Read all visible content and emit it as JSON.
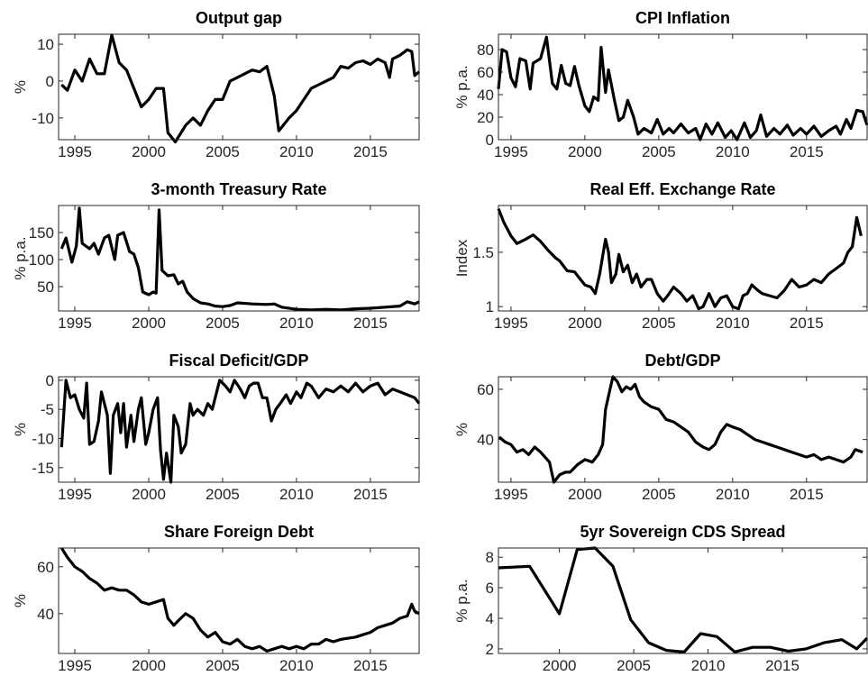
{
  "chart_data": [
    {
      "type": "line",
      "title": "Output gap",
      "y_label": "%",
      "color": "#000000",
      "xlim": [
        1993.9,
        2018.3
      ],
      "ylim": [
        -15.9,
        12.7
      ],
      "xticks": [
        1995,
        2000,
        2005,
        2010,
        2015
      ],
      "yticks": [
        -10,
        0,
        10
      ],
      "x": [
        1994.1,
        1994.5,
        1995,
        1995.5,
        1996,
        1996.5,
        1997,
        1997.5,
        1998,
        1998.5,
        1999,
        1999.5,
        2000,
        2000.5,
        2001,
        2001.3,
        2001.8,
        2002.5,
        2003,
        2003.5,
        2004,
        2004.5,
        2005,
        2005.5,
        2006,
        2006.5,
        2007,
        2007.5,
        2008,
        2008.5,
        2008.8,
        2009.5,
        2010,
        2010.5,
        2011,
        2011.5,
        2012,
        2012.5,
        2013,
        2013.5,
        2014,
        2014.5,
        2015,
        2015.5,
        2016,
        2016.3,
        2016.5,
        2017,
        2017.5,
        2017.8,
        2018,
        2018.3
      ],
      "values": [
        -1,
        -2.5,
        3,
        0,
        6,
        2,
        2,
        12.5,
        5,
        3,
        -2,
        -7,
        -5,
        -2,
        -2,
        -14,
        -16.5,
        -12,
        -10,
        -12,
        -8,
        -5,
        -5,
        0,
        1,
        2,
        3,
        2.5,
        4,
        -4,
        -13.5,
        -10,
        -8,
        -5,
        -2,
        -1,
        0,
        1,
        4,
        3.5,
        5,
        5.5,
        4.5,
        6,
        5,
        1,
        6,
        7,
        8.5,
        8,
        1.5,
        2.5
      ]
    },
    {
      "type": "line",
      "title": "CPI Inflation",
      "y_label": "% p.a.",
      "color": "#000000",
      "xlim": [
        1994.15,
        2019.1
      ],
      "ylim": [
        0,
        93.6
      ],
      "xticks": [
        1995,
        2000,
        2005,
        2010,
        2015
      ],
      "yticks": [
        0,
        20,
        40,
        60,
        80
      ],
      "x": [
        1994.15,
        1994.4,
        1994.7,
        1995,
        1995.3,
        1995.6,
        1996,
        1996.3,
        1996.5,
        1997,
        1997.4,
        1997.8,
        1998.1,
        1998.4,
        1998.7,
        1999,
        1999.3,
        1999.6,
        2000,
        2000.3,
        2000.6,
        2000.9,
        2001.1,
        2001.4,
        2001.6,
        2002,
        2002.3,
        2002.6,
        2002.9,
        2003.3,
        2003.6,
        2004,
        2004.5,
        2004.9,
        2005.3,
        2005.7,
        2006,
        2006.5,
        2007,
        2007.5,
        2007.8,
        2008.2,
        2008.6,
        2009,
        2009.5,
        2009.9,
        2010.3,
        2010.8,
        2011.2,
        2011.6,
        2011.9,
        2012.3,
        2012.8,
        2013.2,
        2013.7,
        2014.1,
        2014.6,
        2015,
        2015.5,
        2016,
        2016.5,
        2017,
        2017.3,
        2017.7,
        2018,
        2018.4,
        2018.8,
        2019.1
      ],
      "values": [
        45,
        80,
        78,
        55,
        47,
        72,
        70,
        45,
        68,
        72,
        91,
        50,
        45,
        66,
        50,
        48,
        65,
        48,
        30,
        25,
        38,
        35,
        82,
        42,
        62,
        35,
        17,
        20,
        35,
        20,
        5,
        10,
        6,
        18,
        5,
        10,
        6,
        14,
        6,
        10,
        0,
        14,
        5,
        15,
        2,
        8,
        0,
        15,
        2,
        8,
        22,
        3,
        10,
        5,
        13,
        4,
        10,
        5,
        12,
        3,
        8,
        12,
        5,
        18,
        10,
        26,
        25,
        13
      ]
    },
    {
      "type": "line",
      "title": "3-month Treasury Rate",
      "y_label": "% p.a.",
      "color": "#000000",
      "xlim": [
        1993.9,
        2018.3
      ],
      "ylim": [
        5,
        200
      ],
      "xticks": [
        1995,
        2000,
        2005,
        2010,
        2015
      ],
      "yticks": [
        50,
        100,
        150
      ],
      "x": [
        1994.1,
        1994.4,
        1994.8,
        1995.1,
        1995.3,
        1995.5,
        1996,
        1996.3,
        1996.6,
        1997,
        1997.3,
        1997.7,
        1997.9,
        1998.3,
        1998.7,
        1999,
        1999.3,
        1999.6,
        2000,
        2000.3,
        2000.5,
        2000.7,
        2000.9,
        2001.3,
        2001.7,
        2002,
        2002.3,
        2002.6,
        2003,
        2003.5,
        2004,
        2004.5,
        2005,
        2005.5,
        2006,
        2007,
        2008,
        2008.5,
        2009,
        2010,
        2011,
        2012,
        2013,
        2014,
        2015,
        2016,
        2017,
        2017.5,
        2018,
        2018.3
      ],
      "values": [
        120,
        140,
        95,
        125,
        195,
        130,
        120,
        130,
        110,
        140,
        145,
        100,
        145,
        150,
        115,
        110,
        85,
        40,
        35,
        40,
        38,
        192,
        80,
        70,
        72,
        55,
        60,
        40,
        28,
        20,
        18,
        14,
        13,
        15,
        20,
        18,
        17,
        18,
        12,
        8,
        7,
        8,
        7,
        9,
        10,
        12,
        14,
        22,
        18,
        22
      ]
    },
    {
      "type": "line",
      "title": "Real Eff. Exchange Rate",
      "y_label": "Index",
      "color": "#000000",
      "xlim": [
        1994.15,
        2019.1
      ],
      "ylim": [
        0.96,
        1.93
      ],
      "xticks": [
        1995,
        2000,
        2005,
        2010,
        2015
      ],
      "yticks": [
        1,
        1.5
      ],
      "x": [
        1994.15,
        1994.5,
        1995,
        1995.4,
        1996,
        1996.5,
        1997,
        1997.5,
        1998,
        1998.3,
        1998.8,
        1999.3,
        1999.7,
        2000,
        2000.4,
        2000.7,
        2001,
        2001.4,
        2001.6,
        2001.8,
        2002.1,
        2002.3,
        2002.6,
        2002.9,
        2003.2,
        2003.5,
        2003.8,
        2004.2,
        2004.5,
        2004.9,
        2005.3,
        2005.6,
        2006,
        2006.5,
        2006.9,
        2007.3,
        2007.7,
        2008,
        2008.4,
        2008.8,
        2009.2,
        2009.6,
        2010,
        2010.4,
        2010.7,
        2011,
        2011.3,
        2011.7,
        2012,
        2012.5,
        2013,
        2013.5,
        2014,
        2014.5,
        2015,
        2015.5,
        2016,
        2016.5,
        2017,
        2017.5,
        2017.8,
        2018.1,
        2018.4,
        2018.7
      ],
      "values": [
        1.9,
        1.78,
        1.65,
        1.58,
        1.62,
        1.66,
        1.6,
        1.52,
        1.45,
        1.42,
        1.33,
        1.32,
        1.25,
        1.2,
        1.18,
        1.12,
        1.3,
        1.62,
        1.5,
        1.22,
        1.3,
        1.48,
        1.32,
        1.38,
        1.22,
        1.3,
        1.18,
        1.25,
        1.25,
        1.12,
        1.05,
        1.1,
        1.18,
        1.12,
        1.05,
        1.1,
        0.98,
        1.0,
        1.12,
        1.0,
        1.08,
        1.1,
        1.0,
        0.98,
        1.1,
        1.12,
        1.2,
        1.15,
        1.12,
        1.1,
        1.08,
        1.15,
        1.25,
        1.18,
        1.2,
        1.25,
        1.22,
        1.3,
        1.35,
        1.4,
        1.5,
        1.55,
        1.82,
        1.65
      ]
    },
    {
      "type": "line",
      "title": "Fiscal Deficit/GDP",
      "y_label": "%",
      "color": "#000000",
      "xlim": [
        1993.9,
        2018.3
      ],
      "ylim": [
        -17.5,
        0.6
      ],
      "xticks": [
        1995,
        2000,
        2005,
        2010,
        2015
      ],
      "yticks": [
        -15,
        -10,
        -5,
        0
      ],
      "x": [
        1994.1,
        1994.4,
        1994.7,
        1995,
        1995.3,
        1995.6,
        1995.8,
        1996,
        1996.3,
        1996.6,
        1996.8,
        1997,
        1997.2,
        1997.4,
        1997.6,
        1997.9,
        1998.1,
        1998.3,
        1998.5,
        1998.8,
        1999,
        1999.3,
        1999.5,
        1999.8,
        2000,
        2000.3,
        2000.6,
        2000.8,
        2001,
        2001.2,
        2001.5,
        2001.7,
        2002,
        2002.2,
        2002.5,
        2002.8,
        2003,
        2003.3,
        2003.7,
        2004,
        2004.3,
        2004.6,
        2004.8,
        2005.2,
        2005.5,
        2005.8,
        2006.2,
        2006.5,
        2006.8,
        2007.1,
        2007.4,
        2007.7,
        2008,
        2008.3,
        2008.6,
        2008.9,
        2009.3,
        2009.6,
        2010,
        2010.3,
        2010.7,
        2011,
        2011.5,
        2012,
        2012.5,
        2013,
        2013.5,
        2014,
        2014.5,
        2015,
        2015.5,
        2016,
        2016.5,
        2017,
        2017.5,
        2018,
        2018.3
      ],
      "values": [
        -11.5,
        0,
        -3,
        -2.5,
        -5,
        -6.5,
        -0.5,
        -11,
        -10.5,
        -7,
        -2,
        -4,
        -6,
        -16,
        -6,
        -4,
        -9,
        -4,
        -11.5,
        -6,
        -10.5,
        -5,
        -3,
        -11,
        -9,
        -5,
        -3,
        -12,
        -17,
        -12.5,
        -17.5,
        -6,
        -8,
        -12.5,
        -11,
        -4,
        -6,
        -5,
        -6,
        -4,
        -5,
        -2,
        0,
        -1,
        -2,
        0,
        -1.5,
        -3,
        -1,
        -0.5,
        -0.5,
        -3,
        -3,
        -7,
        -5,
        -4,
        -2.5,
        -4,
        -2,
        -3,
        -0.5,
        -1,
        -3,
        -1.5,
        -2,
        -1,
        -2,
        -0.5,
        -2,
        -1,
        -0.5,
        -2.5,
        -1.5,
        -2,
        -2.5,
        -3,
        -4
      ]
    },
    {
      "type": "line",
      "title": "Debt/GDP",
      "y_label": "%",
      "color": "#000000",
      "xlim": [
        1994.15,
        2019.1
      ],
      "ylim": [
        23,
        65
      ],
      "xticks": [
        1995,
        2000,
        2005,
        2010,
        2015
      ],
      "yticks": [
        40,
        60
      ],
      "x": [
        1994.2,
        1994.6,
        1995,
        1995.4,
        1995.8,
        1996.2,
        1996.6,
        1997,
        1997.3,
        1997.6,
        1997.9,
        1998.3,
        1998.7,
        1999,
        1999.5,
        2000,
        2000.5,
        2000.9,
        2001.2,
        2001.4,
        2001.7,
        2001.9,
        2002.2,
        2002.5,
        2002.8,
        2003.1,
        2003.4,
        2003.7,
        2004,
        2004.5,
        2005,
        2005.5,
        2006,
        2006.5,
        2007,
        2007.5,
        2008,
        2008.4,
        2008.8,
        2009.2,
        2009.6,
        2010,
        2010.5,
        2011,
        2011.5,
        2012,
        2012.5,
        2013,
        2013.5,
        2014,
        2014.5,
        2015,
        2015.5,
        2016,
        2016.5,
        2017,
        2017.5,
        2018,
        2018.3,
        2018.8
      ],
      "values": [
        41,
        39,
        38,
        35,
        36,
        34,
        37,
        35,
        33,
        31,
        23,
        26,
        27,
        27,
        30,
        32,
        31,
        34,
        38,
        52,
        60,
        65,
        63,
        59,
        61,
        60,
        62,
        57,
        55,
        53,
        52,
        48,
        47,
        45,
        43,
        39,
        37,
        36,
        38,
        43,
        46,
        45,
        44,
        42,
        40,
        39,
        38,
        37,
        36,
        35,
        34,
        33,
        34,
        32,
        33,
        32,
        31,
        33,
        36,
        35
      ]
    },
    {
      "type": "line",
      "title": "Share Foreign Debt",
      "y_label": "%",
      "color": "#000000",
      "xlim": [
        1993.9,
        2018.3
      ],
      "ylim": [
        23,
        68
      ],
      "xticks": [
        1995,
        2000,
        2005,
        2010,
        2015
      ],
      "yticks": [
        40,
        60
      ],
      "x": [
        1994.1,
        1994.5,
        1995,
        1995.5,
        1996,
        1996.5,
        1997,
        1997.5,
        1998,
        1998.5,
        1999,
        1999.5,
        2000,
        2000.5,
        2001,
        2001.3,
        2001.7,
        2002,
        2002.5,
        2003,
        2003.5,
        2004,
        2004.5,
        2005,
        2005.5,
        2006,
        2006.5,
        2007,
        2007.5,
        2008,
        2008.5,
        2009,
        2009.5,
        2010,
        2010.5,
        2011,
        2011.5,
        2012,
        2012.5,
        2013,
        2014,
        2014.5,
        2015,
        2015.5,
        2016,
        2016.5,
        2017,
        2017.5,
        2017.8,
        2018,
        2018.3
      ],
      "values": [
        68,
        64,
        60,
        58,
        55,
        53,
        50,
        51,
        50,
        50,
        48,
        45,
        44,
        45,
        46,
        38,
        35,
        37,
        40,
        38,
        33,
        30,
        32,
        28,
        27,
        29,
        26,
        25,
        26,
        24,
        25,
        26,
        25,
        26,
        25,
        27,
        27,
        29,
        28,
        29,
        30,
        31,
        32,
        34,
        35,
        36,
        38,
        39,
        44,
        41,
        40
      ]
    },
    {
      "type": "line",
      "title": "5yr Sovereign CDS Spread",
      "y_label": "% p.a.",
      "color": "#000000",
      "xlim": [
        1995.9,
        2020.7
      ],
      "ylim": [
        1.7,
        8.6
      ],
      "xticks": [
        2000,
        2005,
        2010,
        2015
      ],
      "yticks": [
        2,
        4,
        6,
        8
      ],
      "x": [
        1995.9,
        1998,
        2000,
        2001.2,
        2002.4,
        2003.6,
        2004.8,
        2006,
        2007.2,
        2008.4,
        2009.5,
        2010.6,
        2011.8,
        2013,
        2014.2,
        2015.4,
        2016.6,
        2017.8,
        2019,
        2020,
        2020.7
      ],
      "values": [
        7.3,
        7.4,
        4.3,
        8.5,
        8.6,
        7.4,
        3.9,
        2.4,
        1.9,
        1.8,
        3.0,
        2.8,
        1.8,
        2.1,
        2.1,
        1.85,
        2.0,
        2.4,
        2.6,
        2.0,
        2.7
      ]
    }
  ]
}
